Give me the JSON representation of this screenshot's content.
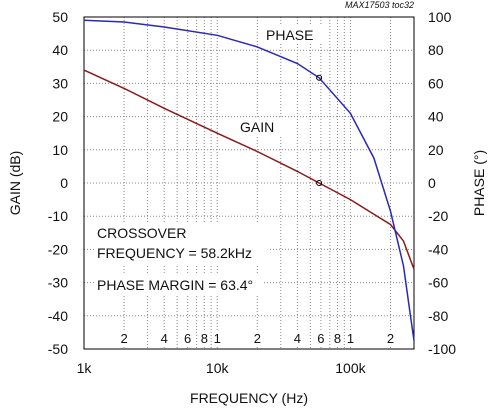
{
  "chart_data": {
    "type": "line",
    "title": "",
    "note": "MAX17503 toc32",
    "xlabel": "FREQUENCY (Hz)",
    "ylabel_left": "GAIN (dB)",
    "ylabel_right": "PHASE (°)",
    "xscale": "log",
    "xlim": [
      1000,
      300000
    ],
    "ylim_left": [
      -50,
      50
    ],
    "ylim_right": [
      -100,
      100
    ],
    "x_ticks": [
      {
        "value": 1000,
        "label": "1k"
      },
      {
        "value": 10000,
        "label": "10k"
      },
      {
        "value": 100000,
        "label": "100k"
      }
    ],
    "x_minor_labels": [
      {
        "value": 2000,
        "label": "2"
      },
      {
        "value": 4000,
        "label": "4"
      },
      {
        "value": 6000,
        "label": "6"
      },
      {
        "value": 8000,
        "label": "8"
      },
      {
        "value": 10000,
        "label": "1"
      },
      {
        "value": 20000,
        "label": "2"
      },
      {
        "value": 40000,
        "label": "4"
      },
      {
        "value": 60000,
        "label": "6"
      },
      {
        "value": 80000,
        "label": "8"
      },
      {
        "value": 100000,
        "label": "1"
      },
      {
        "value": 200000,
        "label": "2"
      }
    ],
    "y_ticks_left": [
      {
        "value": 50,
        "label": "50"
      },
      {
        "value": 40,
        "label": "40"
      },
      {
        "value": 30,
        "label": "30"
      },
      {
        "value": 20,
        "label": "20"
      },
      {
        "value": 10,
        "label": "10"
      },
      {
        "value": 0,
        "label": "0"
      },
      {
        "value": -10,
        "label": "-10"
      },
      {
        "value": -20,
        "label": "-20"
      },
      {
        "value": -30,
        "label": "-30"
      },
      {
        "value": -40,
        "label": "-40"
      },
      {
        "value": -50,
        "label": "-50"
      }
    ],
    "y_ticks_right": [
      {
        "value": 100,
        "label": "100"
      },
      {
        "value": 80,
        "label": "80"
      },
      {
        "value": 60,
        "label": "60"
      },
      {
        "value": 40,
        "label": "40"
      },
      {
        "value": 20,
        "label": "20"
      },
      {
        "value": 0,
        "label": "0"
      },
      {
        "value": -20,
        "label": "-20"
      },
      {
        "value": -40,
        "label": "-40"
      },
      {
        "value": -60,
        "label": "-60"
      },
      {
        "value": -80,
        "label": "-80"
      },
      {
        "value": -100,
        "label": "-100"
      }
    ],
    "grid": true,
    "series": [
      {
        "name": "GAIN",
        "axis": "left",
        "color": "#8b1a1a",
        "x": [
          1000,
          2000,
          4000,
          10000,
          20000,
          40000,
          58200,
          100000,
          200000,
          250000,
          300000
        ],
        "y": [
          34,
          28.5,
          22.5,
          15,
          9.5,
          3.5,
          0,
          -5,
          -12.5,
          -17.5,
          -26
        ]
      },
      {
        "name": "PHASE",
        "axis": "right",
        "color": "#2929b8",
        "x": [
          1000,
          2000,
          4000,
          10000,
          20000,
          40000,
          58200,
          100000,
          150000,
          200000,
          250000,
          280000,
          300000
        ],
        "y": [
          98,
          97,
          94,
          89,
          82,
          72,
          63.4,
          42,
          15,
          -17,
          -50,
          -78,
          -95
        ]
      }
    ],
    "markers": [
      {
        "series": "GAIN",
        "x": 58200,
        "y": 0
      },
      {
        "series": "PHASE",
        "x": 58200,
        "y": 63.4
      }
    ],
    "annotations": {
      "phase_label": "PHASE",
      "gain_label": "GAIN",
      "crossover_line1": "CROSSOVER",
      "crossover_line2": "FREQUENCY = 58.2kHz",
      "phase_margin": "PHASE MARGIN = 63.4°"
    }
  }
}
